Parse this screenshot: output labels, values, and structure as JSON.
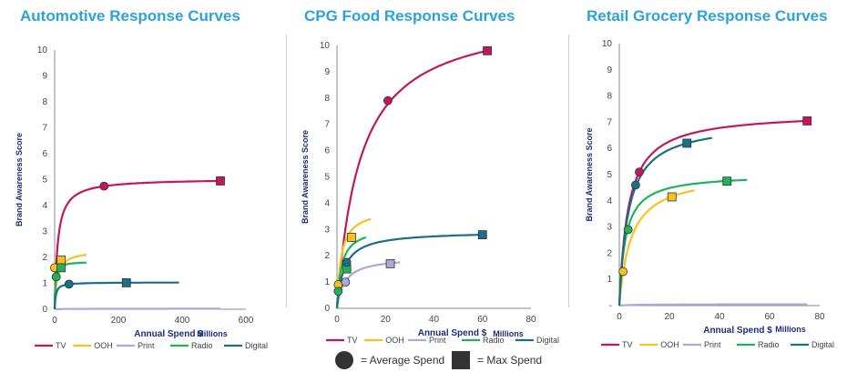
{
  "series_styles": [
    {
      "name": "TV",
      "color": "#c2185b"
    },
    {
      "name": "OOH",
      "color": "#f9c11e"
    },
    {
      "name": "Print",
      "color": "#a9a9dc"
    },
    {
      "name": "Radio",
      "color": "#20b25a"
    },
    {
      "name": "Digital",
      "color": "#1b6f87"
    }
  ],
  "key": {
    "average_label": "= Average Spend",
    "max_label": "= Max Spend"
  },
  "chart_data": [
    {
      "type": "line",
      "title": "Automotive Response Curves",
      "xlabel": "Annual Spend $",
      "ylabel": "Brand Awareness Score",
      "units_label": "Millions",
      "xlim": [
        0,
        600
      ],
      "ylim": [
        0,
        10
      ],
      "xticks": [
        0,
        200,
        400,
        600
      ],
      "yticks": [
        0,
        1,
        2,
        3,
        4,
        5,
        6,
        7,
        8,
        9,
        10
      ],
      "series": [
        {
          "name": "TV",
          "x_max": 520,
          "y_max": 4.95,
          "avg": [
            155,
            4.75
          ],
          "max": [
            520,
            4.95
          ]
        },
        {
          "name": "OOH",
          "x_max": 100,
          "y_max": 2.1,
          "avg": [
            0,
            1.6
          ],
          "max": [
            20,
            1.9
          ]
        },
        {
          "name": "Print",
          "x_max": 520,
          "y_max": 0.02,
          "avg": null,
          "max": null
        },
        {
          "name": "Radio",
          "x_max": 100,
          "y_max": 1.8,
          "avg": [
            5,
            1.25
          ],
          "max": [
            20,
            1.6
          ]
        },
        {
          "name": "Digital",
          "x_max": 390,
          "y_max": 1.03,
          "avg": [
            45,
            0.97
          ],
          "max": [
            225,
            1.02
          ]
        }
      ]
    },
    {
      "type": "line",
      "title": "CPG Food Response Curves",
      "xlabel": "Annual Spend $",
      "ylabel": "Brand Awareness Score",
      "units_label": "Millions",
      "xlim": [
        0,
        80
      ],
      "ylim": [
        0,
        10
      ],
      "xticks": [
        0,
        20,
        40,
        60,
        80
      ],
      "yticks": [
        0,
        1,
        2,
        3,
        4,
        5,
        6,
        7,
        8,
        9,
        10
      ],
      "series": [
        {
          "name": "TV",
          "x_max": 62,
          "y_max": 9.8,
          "avg": [
            21,
            7.9
          ],
          "max": [
            62,
            9.8
          ]
        },
        {
          "name": "OOH",
          "x_max": 14,
          "y_max": 3.4,
          "avg": [
            0.5,
            0.9
          ],
          "max": [
            6,
            2.7
          ]
        },
        {
          "name": "Print",
          "x_max": 26,
          "y_max": 1.75,
          "avg": [
            3.5,
            1.0
          ],
          "max": [
            22,
            1.7
          ]
        },
        {
          "name": "Radio",
          "x_max": 12,
          "y_max": 2.7,
          "avg": [
            0.5,
            0.65
          ],
          "max": [
            4,
            1.5
          ]
        },
        {
          "name": "Digital",
          "x_max": 60,
          "y_max": 2.8,
          "avg": [
            4,
            1.75
          ],
          "max": [
            60,
            2.8
          ]
        }
      ]
    },
    {
      "type": "line",
      "title": "Retail Grocery Response Curves",
      "xlabel": "Annual Spend $",
      "ylabel": "Brand Awareness Score",
      "units_label": "Millions",
      "xlim": [
        0,
        80
      ],
      "ylim": [
        0,
        10
      ],
      "xticks": [
        0,
        20,
        40,
        60,
        80
      ],
      "yticks": [
        0,
        1,
        2,
        3,
        4,
        5,
        6,
        7,
        8,
        9,
        10
      ],
      "y_zero_label": "-",
      "series": [
        {
          "name": "TV",
          "x_max": 75,
          "y_max": 7.05,
          "avg": [
            8,
            5.1
          ],
          "max": [
            75,
            7.05
          ]
        },
        {
          "name": "OOH",
          "x_max": 30,
          "y_max": 4.4,
          "avg": [
            1.5,
            1.3
          ],
          "max": [
            21,
            4.15
          ]
        },
        {
          "name": "Print",
          "x_max": 75,
          "y_max": 0.05,
          "avg": null,
          "max": null
        },
        {
          "name": "Radio",
          "x_max": 51,
          "y_max": 4.8,
          "avg": [
            3.5,
            2.9
          ],
          "max": [
            43,
            4.75
          ]
        },
        {
          "name": "Digital",
          "x_max": 37,
          "y_max": 6.4,
          "avg": [
            6.5,
            4.6
          ],
          "max": [
            27,
            6.2
          ]
        }
      ]
    }
  ]
}
